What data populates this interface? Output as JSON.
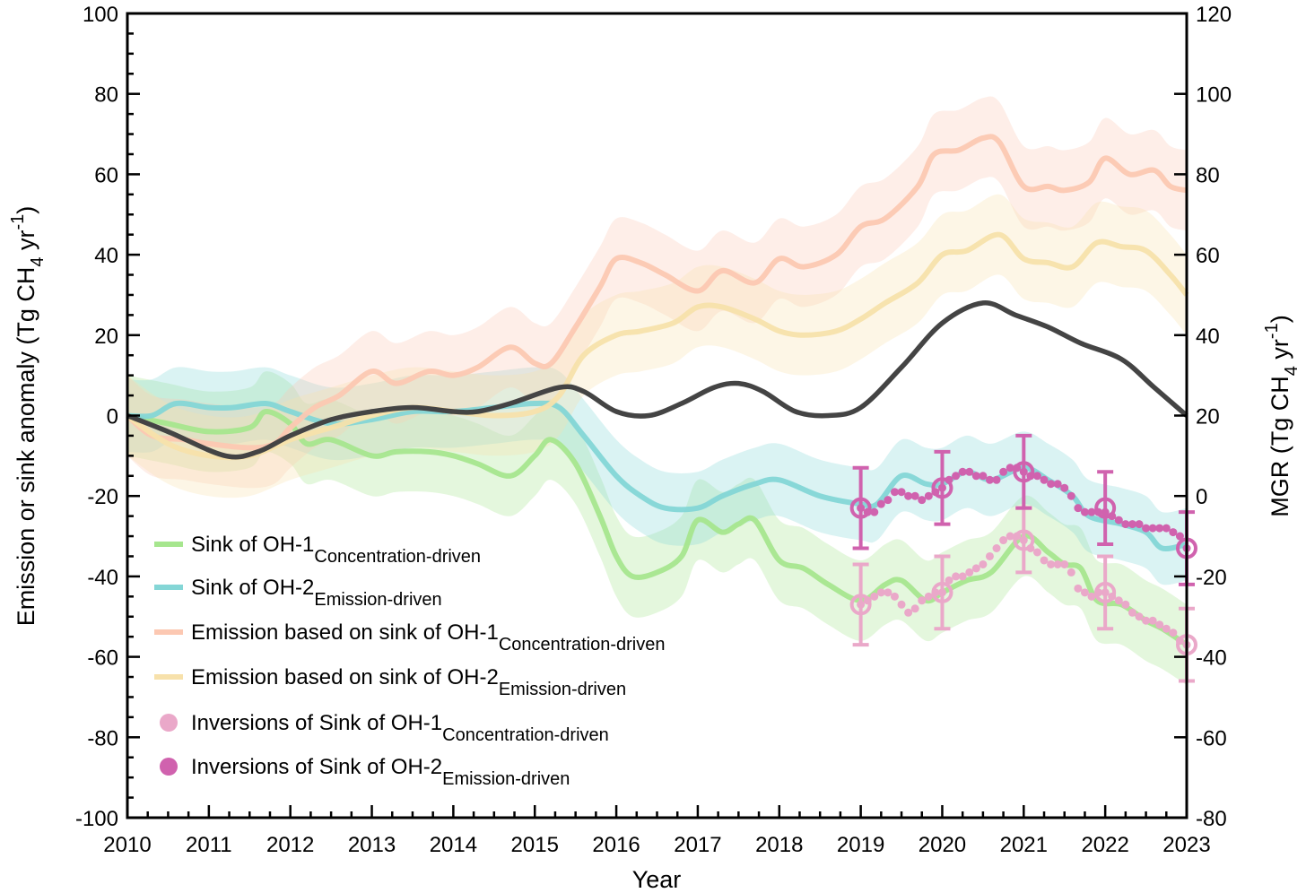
{
  "chart_data": {
    "type": "line",
    "xlabel": "Year",
    "ylabel": {
      "main": "Emission or sink anomaly (Tg CH",
      "sub": "4",
      "mid": " yr",
      "sup": "-1",
      "end": ")"
    },
    "ylabel_right": {
      "main": "MGR (Tg CH",
      "sub": "4",
      "mid": " yr",
      "sup": "-1",
      "end": ")"
    },
    "xlim": [
      2010,
      2023
    ],
    "ylim": [
      -100,
      100
    ],
    "ylim_right": [
      -80,
      120
    ],
    "x_ticks": [
      "2010",
      "2011",
      "2012",
      "2013",
      "2014",
      "2015",
      "2016",
      "2017",
      "2018",
      "2019",
      "2020",
      "2021",
      "2022",
      "2023"
    ],
    "y_ticks": [
      "100",
      "80",
      "60",
      "40",
      "20",
      "0",
      "-20",
      "-40",
      "-60",
      "-80",
      "-100"
    ],
    "y_ticks_right": [
      "120",
      "100",
      "80",
      "60",
      "40",
      "20",
      "0",
      "-20",
      "-40",
      "-60",
      "-80"
    ],
    "legend_placement": "lower-left",
    "colors": {
      "sink1": "#a6e68e",
      "sink2": "#84d6d6",
      "em1": "#fcc8b2",
      "em2": "#f7e1ab",
      "inv1": "#eaa8c9",
      "inv2": "#d062ae",
      "mgr": "#444444"
    },
    "series": [
      {
        "key": "sink1",
        "name": "Sink of OH-1",
        "subscript": "Concentration-driven",
        "band": 10,
        "x": [
          2010,
          2010.5,
          2011,
          2011.5,
          2011.7,
          2012,
          2012.2,
          2012.5,
          2013,
          2013.3,
          2013.7,
          2014,
          2014.3,
          2014.7,
          2015,
          2015.2,
          2015.5,
          2015.8,
          2016,
          2016.2,
          2016.5,
          2016.8,
          2017,
          2017.3,
          2017.5,
          2017.7,
          2018,
          2018.3,
          2018.6,
          2019,
          2019.3,
          2019.5,
          2019.8,
          2020,
          2020.3,
          2020.6,
          2021,
          2021.3,
          2021.5,
          2021.7,
          2021.9,
          2022.2,
          2022.5,
          2022.7,
          2023
        ],
        "y": [
          0,
          -2,
          -4,
          -3,
          1,
          -2,
          -7,
          -6,
          -10,
          -9,
          -9,
          -10,
          -12,
          -15,
          -10,
          -6,
          -12,
          -25,
          -35,
          -40,
          -39,
          -35,
          -26,
          -29,
          -27,
          -26,
          -36,
          -38,
          -42,
          -46,
          -42,
          -41,
          -46,
          -44,
          -41,
          -39,
          -30,
          -34,
          -37,
          -38,
          -46,
          -47,
          -51,
          -53,
          -57
        ]
      },
      {
        "key": "sink2",
        "name": "Sink of OH-2",
        "subscript": "Emission-driven",
        "band": 9,
        "x": [
          2010,
          2010.3,
          2010.6,
          2011,
          2011.3,
          2011.7,
          2012,
          2012.5,
          2013,
          2013.5,
          2014,
          2014.5,
          2015,
          2015.3,
          2015.6,
          2016,
          2016.3,
          2016.6,
          2017,
          2017.3,
          2017.7,
          2018,
          2018.5,
          2019,
          2019.2,
          2019.5,
          2019.8,
          2020,
          2020.3,
          2020.6,
          2021,
          2021.3,
          2021.6,
          2021.8,
          2022.2,
          2022.5,
          2022.7,
          2023
        ],
        "y": [
          0,
          0,
          3,
          2,
          2,
          3,
          1,
          -2,
          -1,
          1,
          1,
          2,
          3,
          2,
          -5,
          -15,
          -20,
          -23,
          -23,
          -20,
          -17,
          -16,
          -20,
          -22,
          -22,
          -15,
          -17,
          -17,
          -14,
          -16,
          -13,
          -16,
          -20,
          -25,
          -27,
          -29,
          -33,
          -32
        ]
      },
      {
        "key": "em1",
        "name": "Emission based on sink of OH-1",
        "subscript": "Concentration-driven",
        "band": 10,
        "x": [
          2010,
          2010.3,
          2010.7,
          2011,
          2011.5,
          2011.8,
          2012,
          2012.3,
          2012.6,
          2013,
          2013.3,
          2013.7,
          2014,
          2014.3,
          2014.7,
          2015,
          2015.2,
          2015.5,
          2015.8,
          2016,
          2016.3,
          2016.6,
          2017,
          2017.3,
          2017.7,
          2018,
          2018.3,
          2018.7,
          2019,
          2019.3,
          2019.7,
          2019.9,
          2020.2,
          2020.5,
          2020.7,
          2021,
          2021.3,
          2021.5,
          2021.8,
          2022,
          2022.3,
          2022.6,
          2022.8,
          2023
        ],
        "y": [
          0,
          -5,
          -6,
          -7,
          -8,
          -7,
          -3,
          2,
          5,
          11,
          8,
          11,
          10,
          12,
          17,
          13,
          13,
          22,
          32,
          39,
          38,
          35,
          31,
          36,
          33,
          39,
          37,
          40,
          47,
          49,
          57,
          65,
          66,
          69,
          68,
          57,
          57,
          56,
          58,
          64,
          60,
          61,
          57,
          56
        ]
      },
      {
        "key": "em2",
        "name": "Emission based on sink of OH-2",
        "subscript": "Emission-driven",
        "band": 10,
        "x": [
          2010,
          2010.5,
          2011,
          2011.5,
          2012,
          2012.5,
          2013,
          2013.5,
          2014,
          2014.5,
          2015,
          2015.3,
          2015.6,
          2016,
          2016.3,
          2016.7,
          2017,
          2017.3,
          2017.7,
          2018,
          2018.3,
          2018.7,
          2019,
          2019.3,
          2019.7,
          2020,
          2020.3,
          2020.7,
          2021,
          2021.3,
          2021.6,
          2021.9,
          2022.2,
          2022.5,
          2022.8,
          2023
        ],
        "y": [
          0,
          -7,
          -10,
          -10,
          -6,
          -3,
          0,
          2,
          1,
          0,
          1,
          5,
          15,
          20,
          21,
          23,
          27,
          27,
          24,
          21,
          20,
          21,
          24,
          28,
          33,
          40,
          41,
          45,
          39,
          38,
          37,
          43,
          42,
          41,
          35,
          30
        ]
      }
    ],
    "inversions": [
      {
        "key": "inv1",
        "name": "Inversions of Sink of OH-1",
        "subscript": "Concentration-driven",
        "annual_x": [
          2019,
          2020,
          2021,
          2022,
          2023
        ],
        "annual_y": [
          -47,
          -44,
          -31,
          -44,
          -57
        ],
        "annual_err": [
          10,
          9,
          8,
          9,
          9
        ],
        "monthly_start": 2019,
        "monthly_y": [
          -47,
          -46,
          -45,
          -44,
          -44,
          -45,
          -47,
          -49,
          -48,
          -46,
          -45,
          -44,
          -44,
          -41,
          -40,
          -40,
          -39,
          -38,
          -37,
          -35,
          -33,
          -31,
          -30,
          -30,
          -31,
          -33,
          -34,
          -36,
          -37,
          -37,
          -37,
          -39,
          -43,
          -44,
          -45,
          -44,
          -44,
          -45,
          -46,
          -47,
          -49,
          -50,
          -51,
          -51,
          -52,
          -53,
          -54,
          -56,
          -57
        ]
      },
      {
        "key": "inv2",
        "name": "Inversions of Sink of OH-2",
        "subscript": "Emission-driven",
        "annual_x": [
          2019,
          2020,
          2021,
          2022,
          2023
        ],
        "annual_y": [
          -23,
          -18,
          -14,
          -23,
          -33
        ],
        "annual_err": [
          10,
          9,
          9,
          9,
          9
        ],
        "monthly_start": 2019,
        "monthly_y": [
          -23,
          -24,
          -24,
          -22,
          -21,
          -19,
          -19,
          -20,
          -20,
          -21,
          -20,
          -19,
          -18,
          -16,
          -15,
          -14,
          -14,
          -15,
          -15,
          -16,
          -16,
          -14,
          -13,
          -13,
          -14,
          -15,
          -15,
          -16,
          -17,
          -17,
          -18,
          -20,
          -23,
          -24,
          -24,
          -24,
          -24,
          -25,
          -26,
          -27,
          -27,
          -27,
          -28,
          -28,
          -28,
          -28,
          -29,
          -30,
          -33
        ]
      }
    ],
    "mgr": {
      "name": "MGR",
      "axis": "right",
      "x": [
        2010,
        2010.5,
        2011.2,
        2011.6,
        2012,
        2012.5,
        2013,
        2013.5,
        2014,
        2014.3,
        2014.7,
        2015.3,
        2015.6,
        2016,
        2016.4,
        2016.8,
        2017.2,
        2017.5,
        2017.8,
        2018.2,
        2018.6,
        2019,
        2019.5,
        2020,
        2020.5,
        2020.9,
        2021.3,
        2021.7,
        2022.2,
        2022.6,
        2023
      ],
      "y": [
        20,
        16,
        10,
        11,
        15,
        19,
        21,
        22,
        21,
        21,
        23,
        27,
        26,
        21,
        20,
        23,
        27,
        28,
        26,
        21,
        20,
        22,
        32,
        43,
        48,
        45,
        42,
        38,
        34,
        27,
        20
      ]
    }
  }
}
